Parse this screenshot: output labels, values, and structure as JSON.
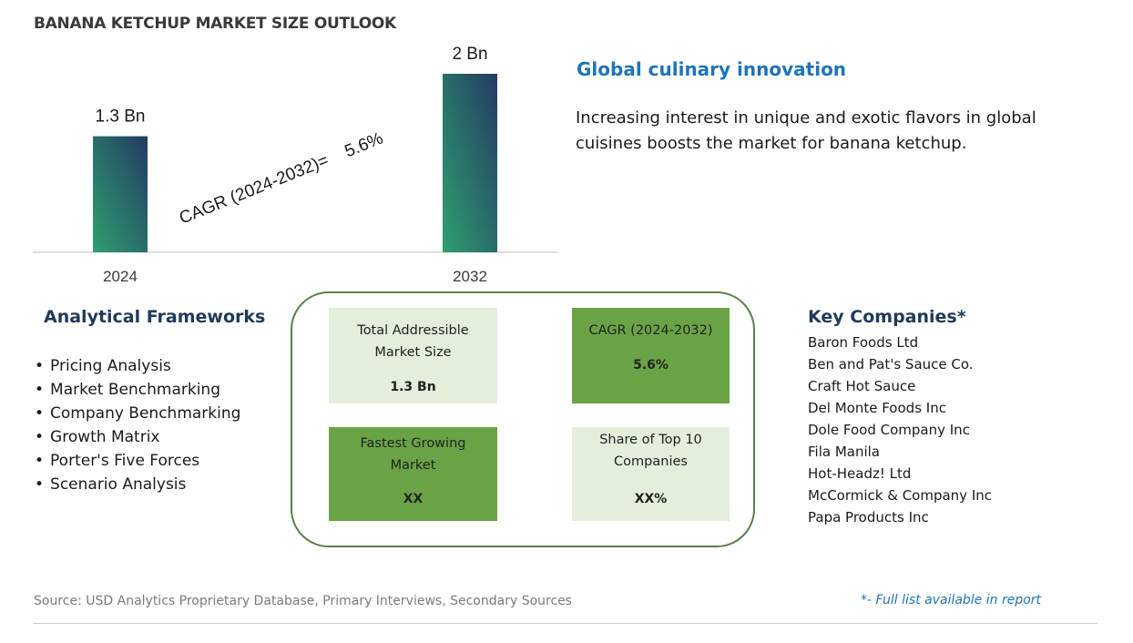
{
  "title": "BANANA KETCHUP MARKET SIZE OUTLOOK",
  "chart_data": {
    "type": "bar",
    "categories": [
      "2024",
      "2032"
    ],
    "values": [
      1.3,
      2
    ],
    "value_labels": [
      "1.3 Bn",
      "2 Bn"
    ],
    "unit": "Bn",
    "annotation": "CAGR (2024-2032)=    5.6%",
    "ylim": [
      0,
      2
    ],
    "grid": false,
    "colors": {
      "bar_top": "#243b63",
      "bar_bottom": "#2e9f6f",
      "axis": "#bfbfbf"
    }
  },
  "innovation": {
    "title": "Global culinary innovation",
    "text": "Increasing interest in unique and exotic flavors in global cuisines boosts the market for banana ketchup."
  },
  "frameworks": {
    "title": "Analytical Frameworks",
    "items": [
      "Pricing Analysis",
      "Market Benchmarking",
      "Company Benchmarking",
      "Growth Matrix",
      "Porter's Five Forces",
      "Scenario Analysis"
    ]
  },
  "metrics": {
    "tam": {
      "label": "Total Addressible Market Size",
      "value": "1.3 Bn"
    },
    "cagr": {
      "label": "CAGR (2024-2032)",
      "value": "5.6%"
    },
    "fastest": {
      "label": "Fastest Growing Market",
      "value": "XX"
    },
    "share": {
      "label": "Share of Top 10 Companies",
      "value": "XX%"
    }
  },
  "companies": {
    "title": "Key Companies*",
    "items": [
      "Baron Foods Ltd",
      "Ben and Pat's Sauce Co.",
      "Craft Hot Sauce",
      "Del Monte Foods Inc",
      "Dole Food Company Inc",
      "Fila Manila",
      "Hot-Headz! Ltd",
      "McCormick & Company Inc",
      "Papa Products Inc"
    ]
  },
  "source": "Source: USD Analytics Proprietary Database, Primary Interviews, Secondary Sources",
  "footnote": "*- Full list available in report"
}
